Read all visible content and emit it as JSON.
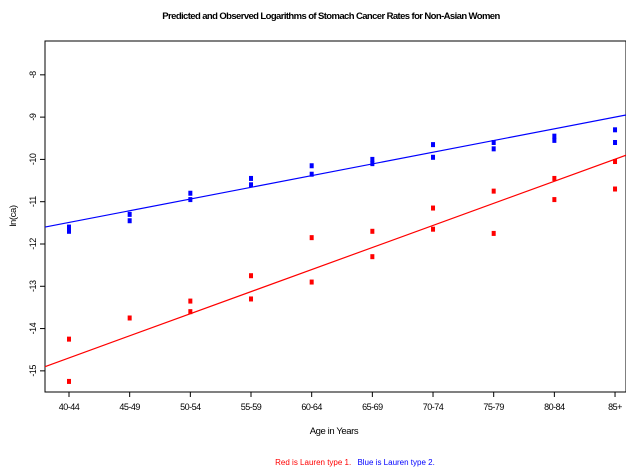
{
  "chart_data": {
    "type": "scatter",
    "title": "Predicted and Observed Logarithms of Stomach Cancer Rates for Non-Asian Women",
    "xlabel": "Age in Years",
    "ylabel": "ln(ca)",
    "categories": [
      "40-44",
      "45-49",
      "50-54",
      "55-59",
      "60-64",
      "65-69",
      "70-74",
      "75-79",
      "80-84",
      "85+"
    ],
    "ylim": [
      -15.5,
      -7.2
    ],
    "yticks": [
      -15,
      -14,
      -13,
      -12,
      -11,
      -10,
      -9,
      -8
    ],
    "grid": false,
    "series": [
      {
        "color": "#ff0000",
        "points": [
          {
            "x": "40-44",
            "y": -14.25
          },
          {
            "x": "40-44",
            "y": -15.25
          },
          {
            "x": "45-49",
            "y": -13.75
          },
          {
            "x": "50-54",
            "y": -13.35
          },
          {
            "x": "50-54",
            "y": -13.6
          },
          {
            "x": "55-59",
            "y": -12.75
          },
          {
            "x": "55-59",
            "y": -13.3
          },
          {
            "x": "60-64",
            "y": -11.85
          },
          {
            "x": "60-64",
            "y": -12.9
          },
          {
            "x": "65-69",
            "y": -11.7
          },
          {
            "x": "65-69",
            "y": -12.3
          },
          {
            "x": "70-74",
            "y": -11.15
          },
          {
            "x": "70-74",
            "y": -11.65
          },
          {
            "x": "75-79",
            "y": -10.75
          },
          {
            "x": "75-79",
            "y": -11.75
          },
          {
            "x": "80-84",
            "y": -10.45
          },
          {
            "x": "80-84",
            "y": -10.95
          },
          {
            "x": "85+",
            "y": -10.05
          },
          {
            "x": "85+",
            "y": -10.7
          }
        ],
        "fit_line": {
          "y_at_x_min": -14.9,
          "y_at_x_max": -9.9
        }
      },
      {
        "color": "#0000ff",
        "points": [
          {
            "x": "40-44",
            "y": -11.6
          },
          {
            "x": "40-44",
            "y": -11.7
          },
          {
            "x": "45-49",
            "y": -11.3
          },
          {
            "x": "45-49",
            "y": -11.45
          },
          {
            "x": "50-54",
            "y": -10.8
          },
          {
            "x": "50-54",
            "y": -10.95
          },
          {
            "x": "55-59",
            "y": -10.45
          },
          {
            "x": "55-59",
            "y": -10.6
          },
          {
            "x": "60-64",
            "y": -10.15
          },
          {
            "x": "60-64",
            "y": -10.35
          },
          {
            "x": "65-69",
            "y": -10.0
          },
          {
            "x": "65-69",
            "y": -10.1
          },
          {
            "x": "70-74",
            "y": -9.65
          },
          {
            "x": "70-74",
            "y": -9.95
          },
          {
            "x": "75-79",
            "y": -9.6
          },
          {
            "x": "75-79",
            "y": -9.75
          },
          {
            "x": "80-84",
            "y": -9.45
          },
          {
            "x": "80-84",
            "y": -9.55
          },
          {
            "x": "85+",
            "y": -9.3
          },
          {
            "x": "85+",
            "y": -9.6
          }
        ],
        "fit_line": {
          "y_at_x_min": -11.6,
          "y_at_x_max": -8.95
        }
      }
    ],
    "caption": [
      {
        "text": "Red is Lauren type 1.",
        "color": "#ff0000"
      },
      {
        "text": "Blue is Lauren type 2.",
        "color": "#0000ff"
      }
    ]
  }
}
